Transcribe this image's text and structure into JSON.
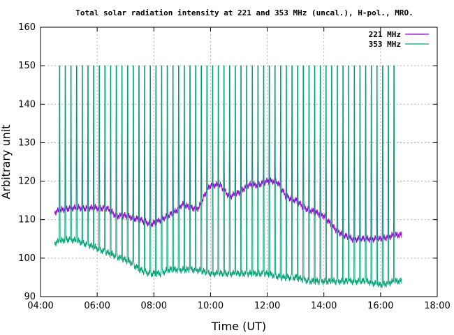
{
  "chart_data": {
    "type": "line",
    "title": "Total solar radiation intensity at 221 and 353 MHz (uncal.), H-pol., MRO.",
    "xlabel": "Time (UT)",
    "ylabel": "Arbitrary unit",
    "xlim": [
      "04:00",
      "18:00"
    ],
    "ylim": [
      90,
      160
    ],
    "x_ticks": [
      "04:00",
      "06:00",
      "08:00",
      "10:00",
      "12:00",
      "14:00",
      "16:00",
      "18:00"
    ],
    "y_ticks": [
      90,
      100,
      110,
      120,
      130,
      140,
      150,
      160
    ],
    "grid": true,
    "legend_position": "top-right",
    "colors": {
      "s221": "#9400d3",
      "s353": "#009e73"
    },
    "series": [
      {
        "name": "221 MHz",
        "color": "#9400d3",
        "x": [
          "04:30",
          "05:00",
          "05:30",
          "06:00",
          "06:20",
          "06:40",
          "07:00",
          "07:30",
          "07:50",
          "08:00",
          "08:30",
          "08:45",
          "09:00",
          "09:20",
          "09:35",
          "09:50",
          "10:00",
          "10:20",
          "10:40",
          "11:00",
          "11:20",
          "11:40",
          "12:00",
          "12:20",
          "12:40",
          "13:00",
          "13:20",
          "13:40",
          "14:00",
          "14:20",
          "14:40",
          "15:00",
          "15:30",
          "16:00",
          "16:30",
          "16:45"
        ],
        "values": [
          112,
          113,
          113,
          113,
          113,
          111,
          111,
          110,
          109,
          109,
          111,
          112,
          114,
          113,
          113,
          117,
          119,
          119,
          116,
          117,
          119,
          119,
          120,
          120,
          116,
          115,
          113,
          112,
          111,
          108,
          106,
          105,
          105,
          105,
          106,
          106
        ]
      },
      {
        "name": "353 MHz",
        "color": "#009e73",
        "x": [
          "04:30",
          "05:00",
          "05:30",
          "05:50",
          "06:10",
          "06:30",
          "06:50",
          "07:10",
          "07:30",
          "07:50",
          "08:00",
          "08:15",
          "08:30",
          "09:00",
          "09:30",
          "10:00",
          "10:30",
          "11:00",
          "11:30",
          "12:00",
          "12:30",
          "13:00",
          "13:30",
          "14:00",
          "14:30",
          "15:00",
          "15:30",
          "16:00",
          "16:30",
          "16:45"
        ],
        "values": [
          104,
          105,
          104,
          103,
          102,
          101,
          100,
          99,
          97,
          96,
          96,
          96,
          97,
          97,
          97,
          96,
          96,
          96,
          96,
          96,
          95,
          95,
          94,
          94,
          94,
          94,
          94,
          93,
          94,
          94
        ]
      }
    ],
    "spikes": {
      "start": "04:40",
      "interval_minutes": 12,
      "end": "16:35",
      "s221_peak": 131,
      "s221_low": 124,
      "s353_peak": 150
    }
  }
}
